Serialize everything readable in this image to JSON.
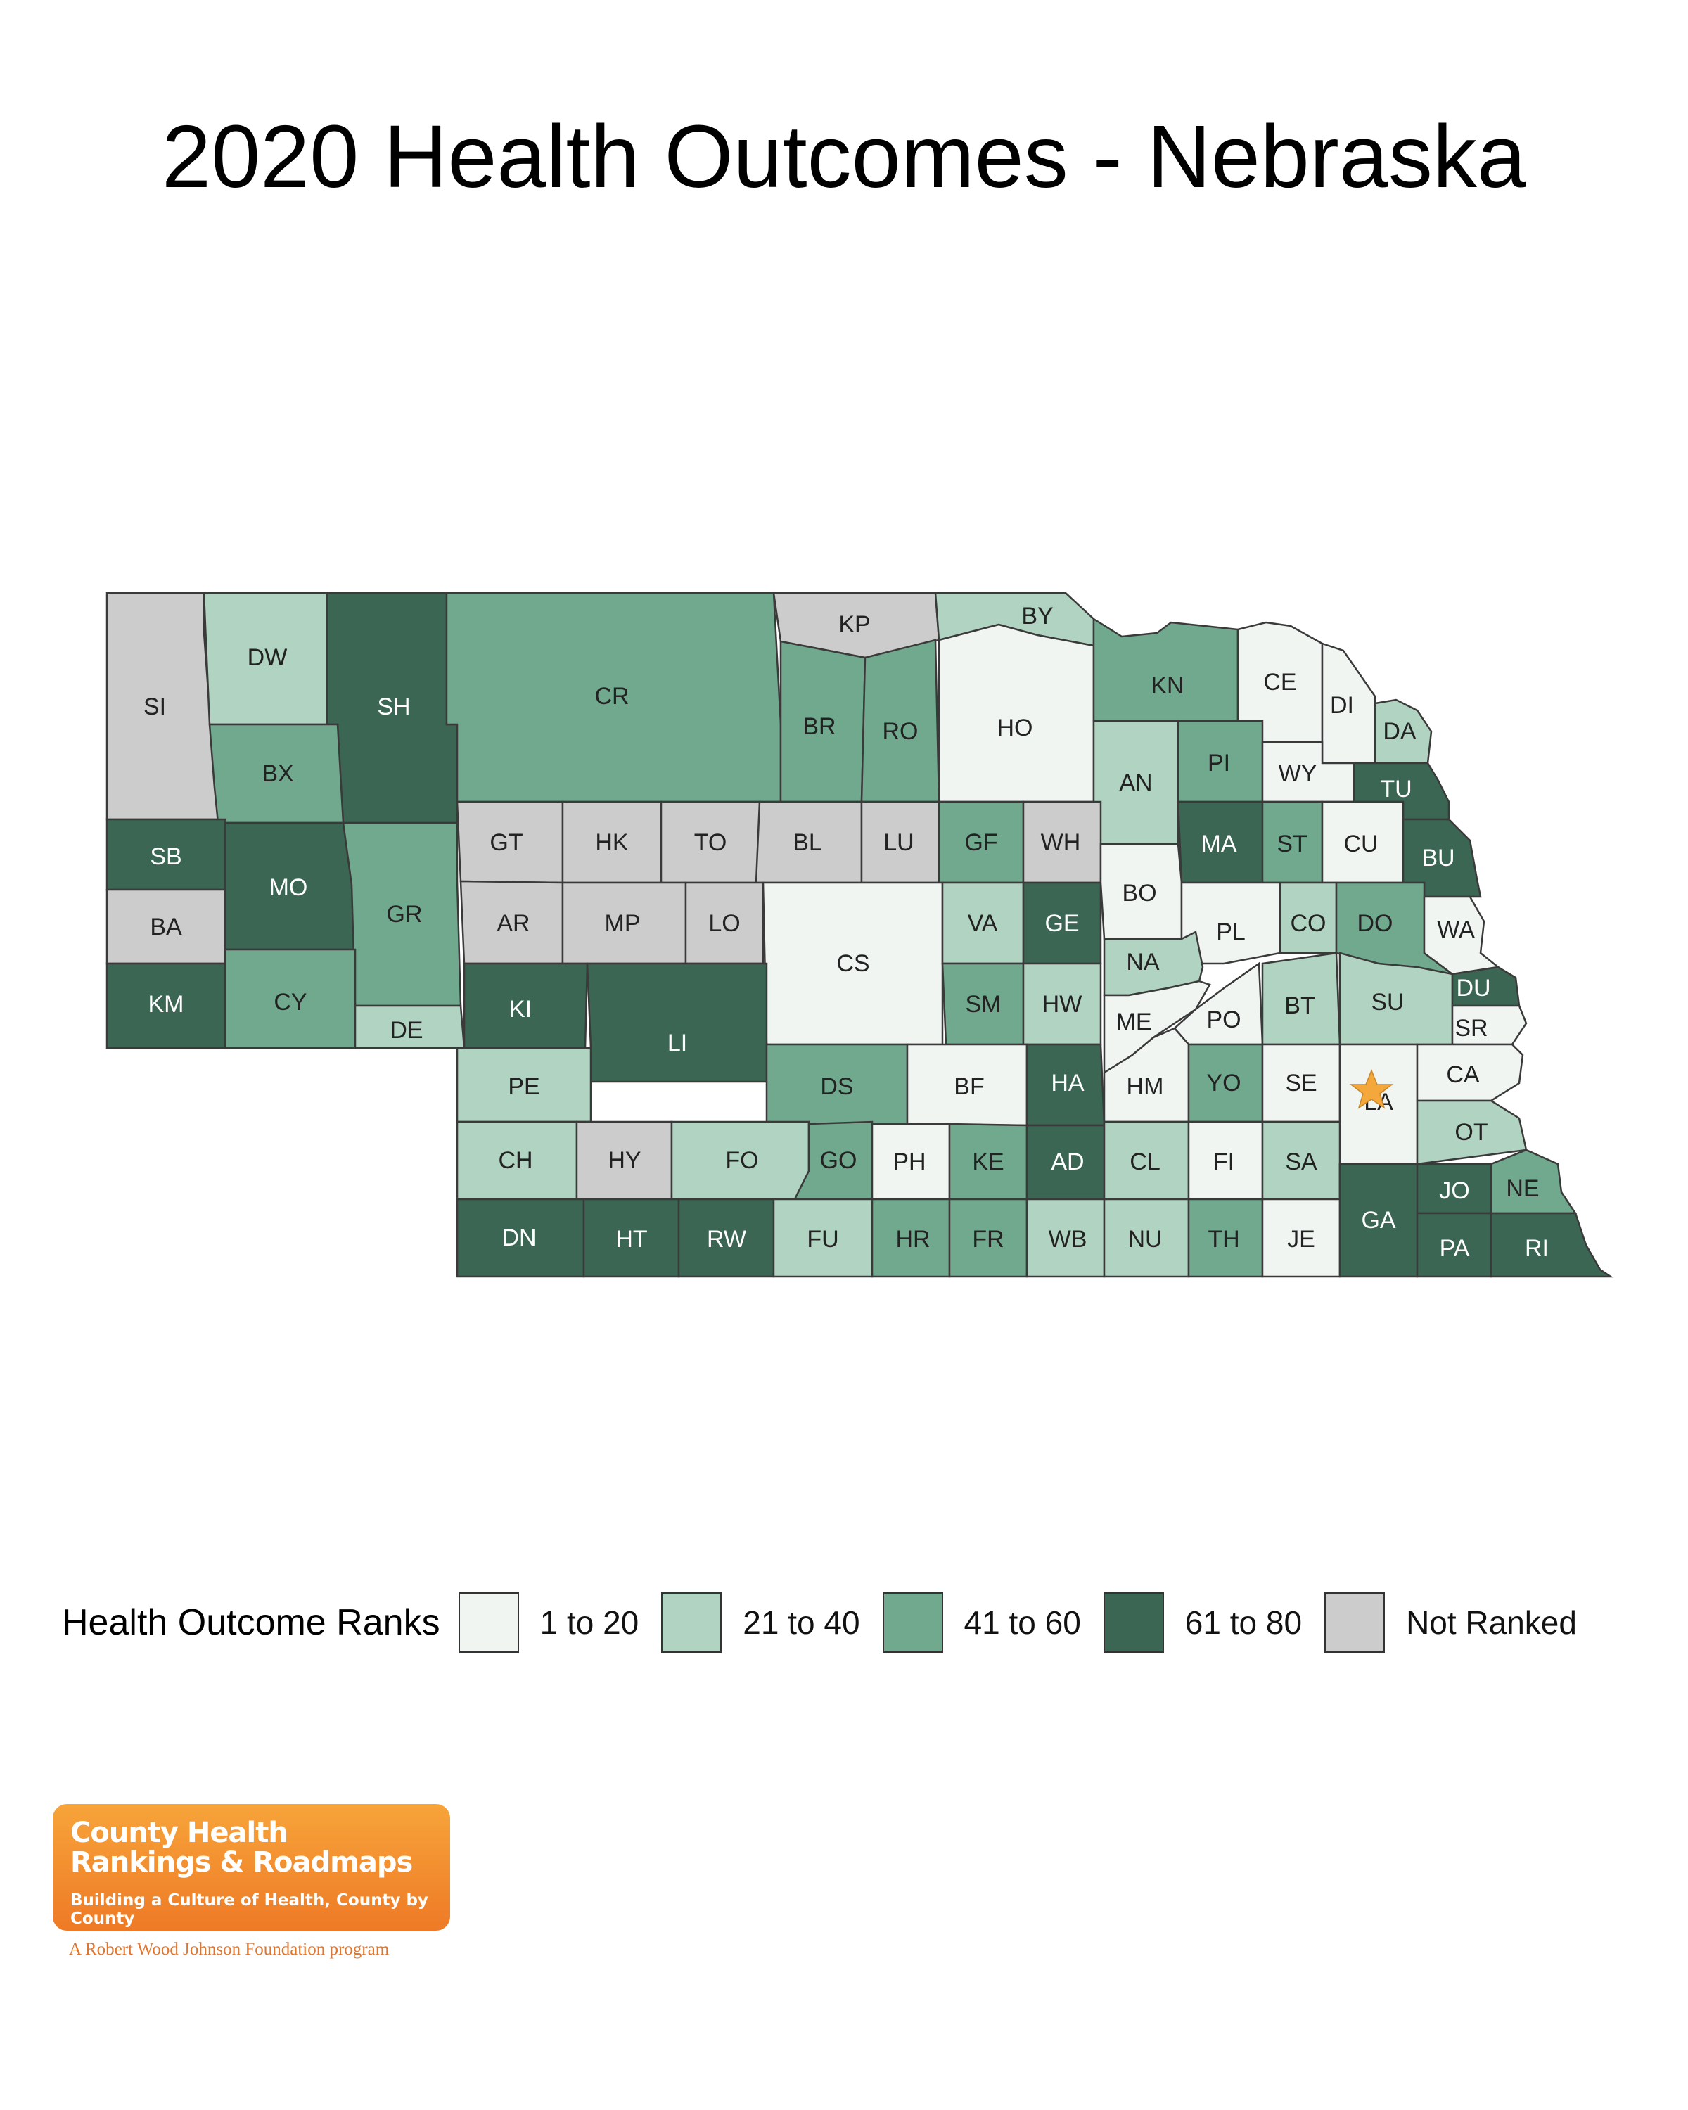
{
  "title": "2020 Health Outcomes - Nebraska",
  "legend": {
    "title": "Health Outcome Ranks",
    "items": [
      {
        "label": "1 to 20",
        "color": "#f1f5f2"
      },
      {
        "label": "21 to 40",
        "color": "#b1d3c1"
      },
      {
        "label": "41 to 60",
        "color": "#70a98d"
      },
      {
        "label": "61 to 80",
        "color": "#3b6653"
      },
      {
        "label": "Not Ranked",
        "color": "#cccccc"
      }
    ]
  },
  "rank_colors": {
    "1": "#f1f5f2",
    "2": "#b1d3c1",
    "3": "#70a98d",
    "4": "#3b6653",
    "NR": "#cccccc"
  },
  "counties": [
    {
      "code": "SI",
      "rank": "NR"
    },
    {
      "code": "DW",
      "rank": "2"
    },
    {
      "code": "SH",
      "rank": "4"
    },
    {
      "code": "CR",
      "rank": "3"
    },
    {
      "code": "KP",
      "rank": "NR"
    },
    {
      "code": "BY",
      "rank": "2"
    },
    {
      "code": "BX",
      "rank": "3"
    },
    {
      "code": "BR",
      "rank": "3"
    },
    {
      "code": "RO",
      "rank": "3"
    },
    {
      "code": "HO",
      "rank": "1"
    },
    {
      "code": "KN",
      "rank": "3"
    },
    {
      "code": "CE",
      "rank": "1"
    },
    {
      "code": "DI",
      "rank": "1"
    },
    {
      "code": "DA",
      "rank": "2"
    },
    {
      "code": "AN",
      "rank": "2"
    },
    {
      "code": "PI",
      "rank": "3"
    },
    {
      "code": "WY",
      "rank": "1"
    },
    {
      "code": "TU",
      "rank": "4"
    },
    {
      "code": "SB",
      "rank": "4"
    },
    {
      "code": "MO",
      "rank": "4"
    },
    {
      "code": "GR",
      "rank": "3"
    },
    {
      "code": "GT",
      "rank": "NR"
    },
    {
      "code": "HK",
      "rank": "NR"
    },
    {
      "code": "TO",
      "rank": "NR"
    },
    {
      "code": "BL",
      "rank": "NR"
    },
    {
      "code": "LU",
      "rank": "NR"
    },
    {
      "code": "GF",
      "rank": "3"
    },
    {
      "code": "WH",
      "rank": "NR"
    },
    {
      "code": "MA",
      "rank": "4"
    },
    {
      "code": "ST",
      "rank": "3"
    },
    {
      "code": "CU",
      "rank": "1"
    },
    {
      "code": "BU",
      "rank": "4"
    },
    {
      "code": "BA",
      "rank": "NR"
    },
    {
      "code": "AR",
      "rank": "NR"
    },
    {
      "code": "MP",
      "rank": "NR"
    },
    {
      "code": "LO",
      "rank": "NR"
    },
    {
      "code": "CS",
      "rank": "1"
    },
    {
      "code": "VA",
      "rank": "2"
    },
    {
      "code": "GE",
      "rank": "4"
    },
    {
      "code": "BO",
      "rank": "1"
    },
    {
      "code": "PL",
      "rank": "1"
    },
    {
      "code": "CO",
      "rank": "2"
    },
    {
      "code": "DO",
      "rank": "3"
    },
    {
      "code": "WA",
      "rank": "1"
    },
    {
      "code": "KM",
      "rank": "4"
    },
    {
      "code": "CY",
      "rank": "3"
    },
    {
      "code": "DE",
      "rank": "2"
    },
    {
      "code": "KI",
      "rank": "4"
    },
    {
      "code": "LI",
      "rank": "4"
    },
    {
      "code": "SM",
      "rank": "3"
    },
    {
      "code": "HW",
      "rank": "2"
    },
    {
      "code": "NA",
      "rank": "2"
    },
    {
      "code": "ME",
      "rank": "1"
    },
    {
      "code": "PO",
      "rank": "1"
    },
    {
      "code": "BT",
      "rank": "2"
    },
    {
      "code": "SU",
      "rank": "2"
    },
    {
      "code": "DU",
      "rank": "4"
    },
    {
      "code": "SR",
      "rank": "1"
    },
    {
      "code": "PE",
      "rank": "2"
    },
    {
      "code": "DS",
      "rank": "3"
    },
    {
      "code": "BF",
      "rank": "1"
    },
    {
      "code": "HA",
      "rank": "4"
    },
    {
      "code": "HM",
      "rank": "1"
    },
    {
      "code": "YO",
      "rank": "3"
    },
    {
      "code": "SE",
      "rank": "1"
    },
    {
      "code": "LA",
      "rank": "1"
    },
    {
      "code": "CA",
      "rank": "1"
    },
    {
      "code": "OT",
      "rank": "2"
    },
    {
      "code": "CH",
      "rank": "2"
    },
    {
      "code": "HY",
      "rank": "NR"
    },
    {
      "code": "FO",
      "rank": "2"
    },
    {
      "code": "GO",
      "rank": "3"
    },
    {
      "code": "PH",
      "rank": "1"
    },
    {
      "code": "KE",
      "rank": "3"
    },
    {
      "code": "AD",
      "rank": "4"
    },
    {
      "code": "CL",
      "rank": "2"
    },
    {
      "code": "FI",
      "rank": "1"
    },
    {
      "code": "SA",
      "rank": "2"
    },
    {
      "code": "JO",
      "rank": "4"
    },
    {
      "code": "NE",
      "rank": "3"
    },
    {
      "code": "DN",
      "rank": "4"
    },
    {
      "code": "HT",
      "rank": "4"
    },
    {
      "code": "RW",
      "rank": "4"
    },
    {
      "code": "FU",
      "rank": "2"
    },
    {
      "code": "HR",
      "rank": "3"
    },
    {
      "code": "FR",
      "rank": "3"
    },
    {
      "code": "WB",
      "rank": "2"
    },
    {
      "code": "NU",
      "rank": "2"
    },
    {
      "code": "TH",
      "rank": "3"
    },
    {
      "code": "JE",
      "rank": "1"
    },
    {
      "code": "GA",
      "rank": "4"
    },
    {
      "code": "PA",
      "rank": "4"
    },
    {
      "code": "RI",
      "rank": "4"
    }
  ],
  "capital_marker": {
    "county": "LA",
    "icon": "star-icon",
    "color": "#f4a73b"
  },
  "logo": {
    "line1": "County Health",
    "line2": "Rankings & Roadmaps",
    "tagline": "Building a Culture of Health, County by County",
    "sponsor": "A Robert Wood Johnson Foundation program"
  }
}
